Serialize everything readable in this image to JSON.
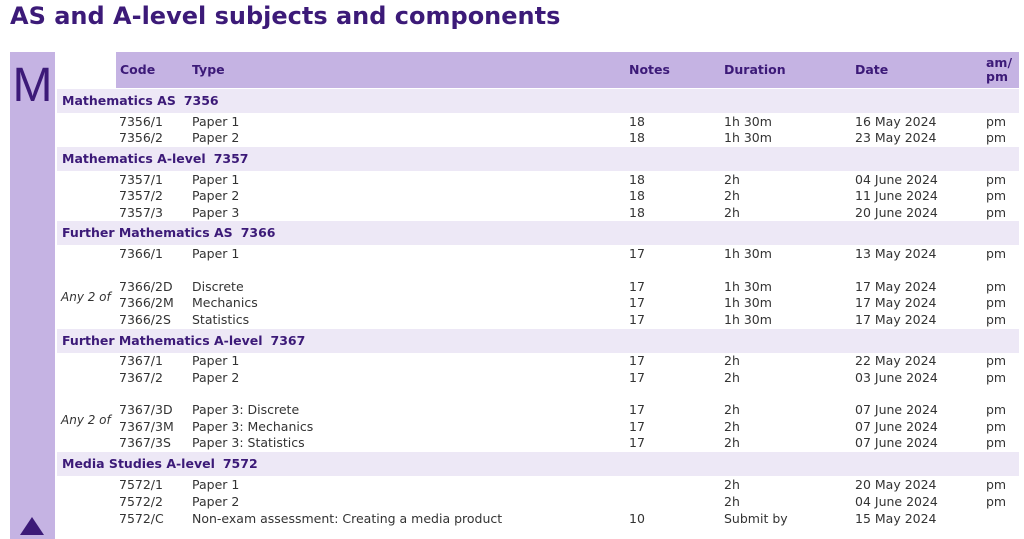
{
  "title": "AS and A-level subjects and components",
  "side_tab": {
    "letter": "M",
    "arrow_icon": "triangle-up-icon"
  },
  "header": {
    "code": "Code",
    "type": "Type",
    "notes": "Notes",
    "duration": "Duration",
    "date": "Date",
    "ampm_line1": "am/",
    "ampm_line2": "pm"
  },
  "sections": [
    {
      "name": "Mathematics AS",
      "code": "7356",
      "rows": [
        {
          "code": "7356/1",
          "type": "Paper 1",
          "notes": "18",
          "duration": "1h 30m",
          "date": "16 May 2024",
          "ampm": "pm"
        },
        {
          "code": "7356/2",
          "type": "Paper 2",
          "notes": "18",
          "duration": "1h 30m",
          "date": "23 May 2024",
          "ampm": "pm"
        }
      ]
    },
    {
      "name": "Mathematics A-level",
      "code": "7357",
      "rows": [
        {
          "code": "7357/1",
          "type": "Paper 1",
          "notes": "18",
          "duration": "2h",
          "date": "04 June 2024",
          "ampm": "pm"
        },
        {
          "code": "7357/2",
          "type": "Paper 2",
          "notes": "18",
          "duration": "2h",
          "date": "11 June 2024",
          "ampm": "pm"
        },
        {
          "code": "7357/3",
          "type": "Paper 3",
          "notes": "18",
          "duration": "2h",
          "date": "20 June 2024",
          "ampm": "pm"
        }
      ]
    },
    {
      "name": "Further Mathematics AS",
      "code": "7366",
      "rows": [
        {
          "code": "7366/1",
          "type": "Paper 1",
          "notes": "17",
          "duration": "1h 30m",
          "date": "13 May 2024",
          "ampm": "pm"
        },
        {
          "code": "7366/2D",
          "type": "Discrete",
          "notes": "17",
          "duration": "1h 30m",
          "date": "17 May 2024",
          "ampm": "pm"
        },
        {
          "code": "7366/2M",
          "type": "Mechanics",
          "notes": "17",
          "duration": "1h 30m",
          "date": "17 May 2024",
          "ampm": "pm"
        },
        {
          "code": "7366/2S",
          "type": "Statistics",
          "notes": "17",
          "duration": "1h 30m",
          "date": "17 May 2024",
          "ampm": "pm"
        }
      ],
      "group_note": "Any 2 of"
    },
    {
      "name": "Further Mathematics A-level",
      "code": "7367",
      "rows": [
        {
          "code": "7367/1",
          "type": "Paper 1",
          "notes": "17",
          "duration": "2h",
          "date": "22 May 2024",
          "ampm": "pm"
        },
        {
          "code": "7367/2",
          "type": "Paper 2",
          "notes": "17",
          "duration": "2h",
          "date": "03 June 2024",
          "ampm": "pm"
        },
        {
          "code": "7367/3D",
          "type": "Paper 3: Discrete",
          "notes": "17",
          "duration": "2h",
          "date": "07 June 2024",
          "ampm": "pm"
        },
        {
          "code": "7367/3M",
          "type": "Paper 3: Mechanics",
          "notes": "17",
          "duration": "2h",
          "date": "07 June 2024",
          "ampm": "pm"
        },
        {
          "code": "7367/3S",
          "type": "Paper 3: Statistics",
          "notes": "17",
          "duration": "2h",
          "date": "07 June 2024",
          "ampm": "pm"
        }
      ],
      "group_note": "Any 2 of"
    },
    {
      "name": "Media Studies A-level",
      "code": "7572",
      "rows": [
        {
          "code": "7572/1",
          "type": "Paper 1",
          "notes": "",
          "duration": "2h",
          "date": "20 May 2024",
          "ampm": "pm"
        },
        {
          "code": "7572/2",
          "type": "Paper 2",
          "notes": "",
          "duration": "2h",
          "date": "04 June 2024",
          "ampm": "pm"
        },
        {
          "code": "7572/C",
          "type": "Non-exam assessment: Creating a media product",
          "notes": "10",
          "duration": "Submit by",
          "date": "15 May 2024",
          "ampm": ""
        }
      ]
    }
  ],
  "colors": {
    "brand": "#3c1a78",
    "header_bg": "#c5b3e3",
    "section_bg": "#ede8f6",
    "text": "#333333"
  }
}
